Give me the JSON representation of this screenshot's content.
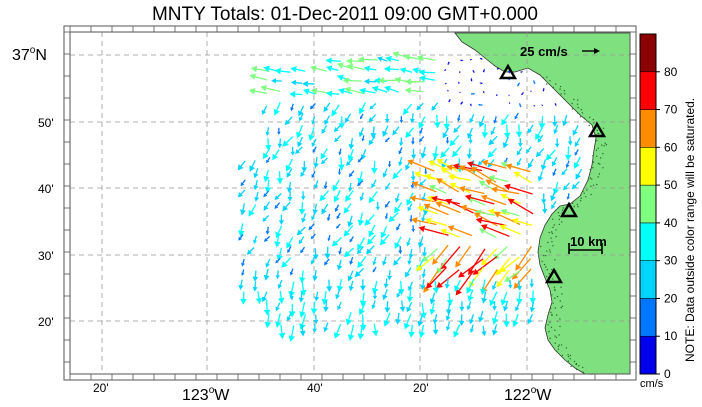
{
  "title": "MNTY Totals: 01-Dec-2011 09:00 GMT+0.000",
  "latitude_labels": [
    {
      "text": "37",
      "hemisphere": "N"
    },
    {
      "text": "50'"
    },
    {
      "text": "40'"
    },
    {
      "text": "30'"
    },
    {
      "text": "20'"
    }
  ],
  "longitude_labels": [
    {
      "text": "20'"
    },
    {
      "text": "123",
      "hemisphere": "W"
    },
    {
      "text": "40'"
    },
    {
      "text": "20'"
    },
    {
      "text": "122",
      "hemisphere": "W"
    }
  ],
  "scale_arrow_label": "25 cm/s",
  "distance_scale_label": "10 km",
  "colorbar": {
    "ticks": [
      "0",
      "10",
      "20",
      "30",
      "40",
      "50",
      "60",
      "70",
      "80"
    ],
    "colors": [
      "#0000ee",
      "#0077ff",
      "#00d4ff",
      "#00ffff",
      "#80ff80",
      "#ffff00",
      "#ff8c00",
      "#ff0000",
      "#8b0000"
    ],
    "unit": "cm/s",
    "note": "NOTE: Data outside color range will be saturated."
  },
  "colors": {
    "land": "#7ee07e",
    "grid": "#999999",
    "background": "#ffffff"
  },
  "station_icon": "triangle-icon"
}
